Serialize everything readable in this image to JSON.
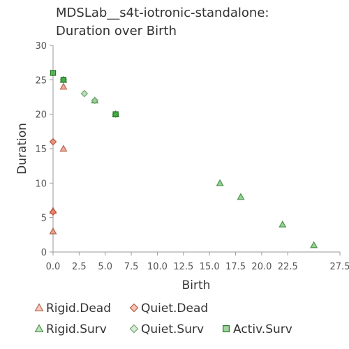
{
  "chart_data": {
    "type": "scatter",
    "title": "MDSLab__s4t-iotronic-standalone:",
    "subtitle": "Duration over Birth",
    "xlabel": "Birth",
    "ylabel": "Duration",
    "xlim": [
      0,
      27.5
    ],
    "ylim": [
      0,
      30
    ],
    "x_ticks": [
      "0.0",
      "2.5",
      "5.0",
      "7.5",
      "10.0",
      "12.5",
      "15.0",
      "17.5",
      "20.0",
      "22.5",
      "27.5"
    ],
    "y_ticks": [
      "0",
      "5",
      "10",
      "15",
      "20",
      "25",
      "30"
    ],
    "grid": false,
    "legend_position": "bottom",
    "series": [
      {
        "name": "Rigid.Dead",
        "marker": "triangle",
        "color": "#f08a6e",
        "points": [
          {
            "x": 0,
            "y": 3
          },
          {
            "x": 0,
            "y": 6
          },
          {
            "x": 1,
            "y": 15
          },
          {
            "x": 1,
            "y": 24
          }
        ]
      },
      {
        "name": "Quiet.Dead",
        "marker": "diamond",
        "color": "#ee7a5c",
        "points": [
          {
            "x": 0,
            "y": 16
          },
          {
            "x": 0,
            "y": 5.8
          }
        ]
      },
      {
        "name": "Rigid.Surv",
        "marker": "triangle",
        "color": "#6cc46c",
        "points": [
          {
            "x": 1,
            "y": 25
          },
          {
            "x": 4,
            "y": 22
          },
          {
            "x": 6,
            "y": 20
          },
          {
            "x": 16,
            "y": 10
          },
          {
            "x": 18,
            "y": 8
          },
          {
            "x": 22,
            "y": 4
          },
          {
            "x": 25,
            "y": 1
          }
        ]
      },
      {
        "name": "Quiet.Surv",
        "marker": "diamond",
        "color": "#9ed69e",
        "points": [
          {
            "x": 3,
            "y": 23
          },
          {
            "x": 4,
            "y": 22
          },
          {
            "x": 6,
            "y": 20
          },
          {
            "x": 1,
            "y": 25
          }
        ]
      },
      {
        "name": "Activ.Surv",
        "marker": "square",
        "color": "#2ea02e",
        "points": [
          {
            "x": 0,
            "y": 26
          },
          {
            "x": 1,
            "y": 25
          },
          {
            "x": 6,
            "y": 20
          }
        ]
      }
    ]
  }
}
